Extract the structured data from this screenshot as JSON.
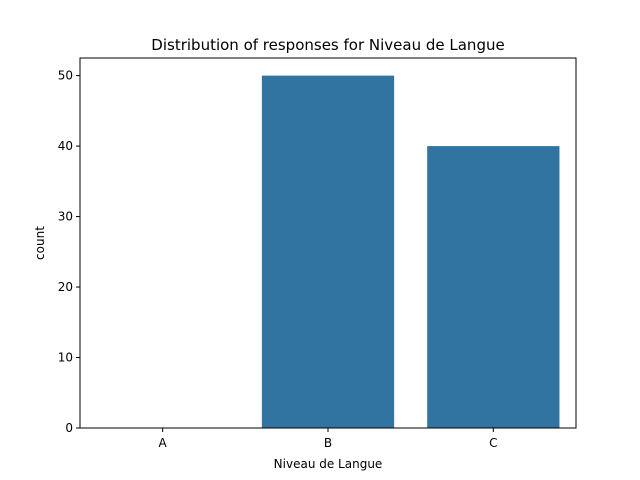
{
  "chart_data": {
    "type": "bar",
    "title": "Distribution of responses for Niveau de Langue",
    "xlabel": "Niveau de Langue",
    "ylabel": "count",
    "categories": [
      "A",
      "B",
      "C"
    ],
    "values": [
      0,
      50,
      40
    ],
    "ylim": [
      0,
      52.5
    ],
    "yticks": [
      0,
      10,
      20,
      30,
      40,
      50
    ],
    "grid": false,
    "legend": "none",
    "bar_color": "#3274a1"
  }
}
